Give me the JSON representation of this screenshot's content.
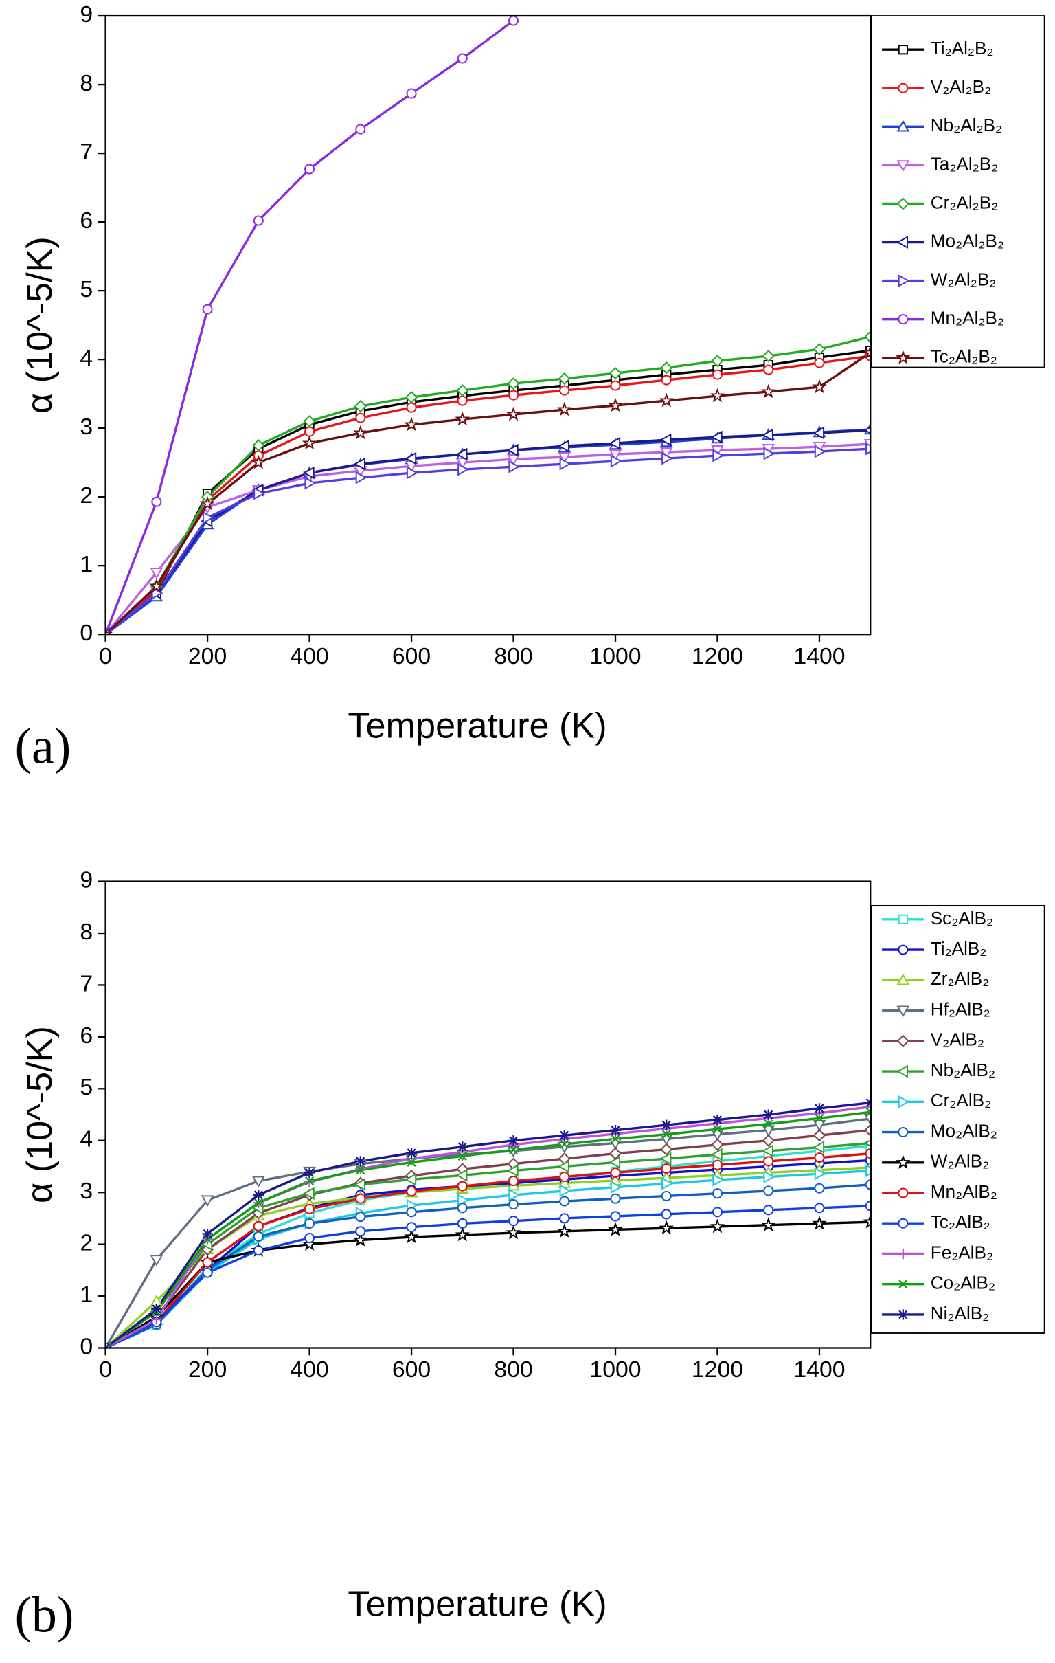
{
  "chart_data": [
    {
      "type": "line",
      "panel_label": "(a)",
      "x_label": "Temperature (K)",
      "y_label": "α (10^-5/K)",
      "x": [
        0,
        100,
        200,
        300,
        400,
        500,
        600,
        700,
        800,
        900,
        1000,
        1100,
        1200,
        1300,
        1400,
        1500
      ],
      "xlim": [
        0,
        1500
      ],
      "xticks": [
        0,
        200,
        400,
        600,
        800,
        1000,
        1200,
        1400
      ],
      "ylim": [
        0,
        9
      ],
      "yticks": [
        0,
        1,
        2,
        3,
        4,
        5,
        6,
        7,
        8,
        9
      ],
      "series": [
        {
          "name": "Ti₂Al₂B₂",
          "color": "#000000",
          "marker": "square",
          "values": [
            0,
            0.6,
            2.05,
            2.7,
            3.05,
            3.25,
            3.38,
            3.47,
            3.55,
            3.62,
            3.7,
            3.78,
            3.85,
            3.92,
            4.03,
            4.13
          ]
        },
        {
          "name": "V₂Al₂B₂",
          "color": "#e8161b",
          "marker": "circle",
          "values": [
            0,
            0.65,
            1.95,
            2.6,
            2.95,
            3.15,
            3.3,
            3.4,
            3.48,
            3.55,
            3.62,
            3.7,
            3.78,
            3.85,
            3.95,
            4.05
          ]
        },
        {
          "name": "Nb₂Al₂B₂",
          "color": "#1c3fd6",
          "marker": "triangle-up",
          "values": [
            0,
            0.55,
            1.6,
            2.1,
            2.35,
            2.47,
            2.55,
            2.62,
            2.68,
            2.72,
            2.76,
            2.8,
            2.85,
            2.9,
            2.94,
            2.98
          ]
        },
        {
          "name": "Ta₂Al₂B₂",
          "color": "#c060e0",
          "marker": "triangle-down",
          "values": [
            0,
            0.9,
            1.85,
            2.1,
            2.3,
            2.38,
            2.45,
            2.5,
            2.55,
            2.58,
            2.62,
            2.65,
            2.68,
            2.7,
            2.73,
            2.77
          ]
        },
        {
          "name": "Cr₂Al₂B₂",
          "color": "#22aa22",
          "marker": "diamond",
          "values": [
            0,
            0.7,
            2.0,
            2.75,
            3.1,
            3.32,
            3.45,
            3.55,
            3.65,
            3.72,
            3.8,
            3.88,
            3.98,
            4.05,
            4.15,
            4.33
          ]
        },
        {
          "name": "Mo₂Al₂B₂",
          "color": "#1a1a8c",
          "marker": "triangle-left",
          "values": [
            0,
            0.6,
            1.65,
            2.1,
            2.35,
            2.48,
            2.56,
            2.62,
            2.68,
            2.74,
            2.78,
            2.83,
            2.87,
            2.9,
            2.93,
            2.97
          ]
        },
        {
          "name": "W₂Al₂B₂",
          "color": "#5040e0",
          "marker": "triangle-right",
          "values": [
            0,
            0.6,
            1.7,
            2.05,
            2.2,
            2.28,
            2.35,
            2.4,
            2.44,
            2.48,
            2.52,
            2.56,
            2.6,
            2.63,
            2.66,
            2.7
          ]
        },
        {
          "name": "Mn₂Al₂B₂",
          "color": "#8a2be2",
          "marker": "circle",
          "values": [
            0,
            1.93,
            4.73,
            6.02,
            6.77,
            7.35,
            7.87,
            8.38,
            8.93,
            null,
            null,
            null,
            null,
            null,
            null,
            null
          ]
        },
        {
          "name": "Tc₂Al₂B₂",
          "color": "#6b1010",
          "marker": "star",
          "values": [
            0,
            0.7,
            1.9,
            2.5,
            2.78,
            2.93,
            3.05,
            3.13,
            3.2,
            3.27,
            3.33,
            3.4,
            3.47,
            3.53,
            3.6,
            4.1
          ]
        }
      ]
    },
    {
      "type": "line",
      "panel_label": "(b)",
      "x_label": "Temperature (K)",
      "y_label": "α (10^-5/K)",
      "x": [
        0,
        100,
        200,
        300,
        400,
        500,
        600,
        700,
        800,
        900,
        1000,
        1100,
        1200,
        1300,
        1400,
        1500
      ],
      "xlim": [
        0,
        1500
      ],
      "xticks": [
        0,
        200,
        400,
        600,
        800,
        1000,
        1200,
        1400
      ],
      "ylim": [
        0,
        9
      ],
      "yticks": [
        0,
        1,
        2,
        3,
        4,
        5,
        6,
        7,
        8,
        9
      ],
      "series": [
        {
          "name": "Sc₂AlB₂",
          "color": "#2ee0d0",
          "marker": "square",
          "values": [
            0,
            0.45,
            1.55,
            2.2,
            2.6,
            2.85,
            3.0,
            3.1,
            3.2,
            3.3,
            3.4,
            3.5,
            3.6,
            3.7,
            3.8,
            3.9
          ]
        },
        {
          "name": "Ti₂AlB₂",
          "color": "#1010d0",
          "marker": "circle",
          "values": [
            0,
            0.5,
            1.5,
            2.35,
            2.7,
            2.95,
            3.05,
            3.12,
            3.18,
            3.25,
            3.32,
            3.38,
            3.44,
            3.5,
            3.56,
            3.62
          ]
        },
        {
          "name": "Zr₂AlB₂",
          "color": "#90d020",
          "marker": "triangle-up",
          "values": [
            0,
            0.9,
            1.9,
            2.55,
            2.78,
            2.9,
            3.0,
            3.07,
            3.13,
            3.18,
            3.23,
            3.28,
            3.33,
            3.38,
            3.43,
            3.48
          ]
        },
        {
          "name": "Hf₂AlB₂",
          "color": "#607080",
          "marker": "triangle-down",
          "values": [
            0,
            1.7,
            2.85,
            3.22,
            3.4,
            3.55,
            3.65,
            3.73,
            3.8,
            3.88,
            3.95,
            4.03,
            4.12,
            4.2,
            4.3,
            4.42
          ]
        },
        {
          "name": "V₂AlB₂",
          "color": "#804050",
          "marker": "diamond",
          "values": [
            0,
            0.6,
            1.9,
            2.6,
            2.95,
            3.18,
            3.32,
            3.45,
            3.55,
            3.65,
            3.75,
            3.83,
            3.92,
            4.0,
            4.1,
            4.2
          ]
        },
        {
          "name": "Nb₂AlB₂",
          "color": "#30a030",
          "marker": "triangle-left",
          "values": [
            0,
            0.7,
            2.0,
            2.7,
            2.98,
            3.15,
            3.25,
            3.33,
            3.42,
            3.5,
            3.58,
            3.65,
            3.73,
            3.8,
            3.87,
            3.95
          ]
        },
        {
          "name": "Cr₂AlB₂",
          "color": "#20c8e8",
          "marker": "triangle-right",
          "values": [
            0,
            0.45,
            1.45,
            2.1,
            2.4,
            2.6,
            2.75,
            2.85,
            2.95,
            3.03,
            3.1,
            3.17,
            3.24,
            3.3,
            3.36,
            3.42
          ]
        },
        {
          "name": "Mo₂AlB₂",
          "color": "#1060c0",
          "marker": "circle",
          "values": [
            0,
            0.45,
            1.5,
            2.15,
            2.4,
            2.53,
            2.62,
            2.7,
            2.77,
            2.83,
            2.88,
            2.93,
            2.98,
            3.03,
            3.08,
            3.15
          ]
        },
        {
          "name": "W₂AlB₂",
          "color": "#000000",
          "marker": "star",
          "values": [
            0,
            0.6,
            1.65,
            1.88,
            2.0,
            2.08,
            2.14,
            2.18,
            2.22,
            2.25,
            2.28,
            2.31,
            2.34,
            2.37,
            2.4,
            2.43
          ]
        },
        {
          "name": "Mn₂AlB₂",
          "color": "#e01010",
          "marker": "circle",
          "values": [
            0,
            0.5,
            1.65,
            2.35,
            2.68,
            2.88,
            3.02,
            3.12,
            3.22,
            3.3,
            3.38,
            3.46,
            3.53,
            3.6,
            3.67,
            3.75
          ]
        },
        {
          "name": "Tc₂AlB₂",
          "color": "#1040e0",
          "marker": "circle",
          "values": [
            0,
            0.5,
            1.45,
            1.88,
            2.12,
            2.25,
            2.33,
            2.4,
            2.45,
            2.5,
            2.54,
            2.58,
            2.62,
            2.66,
            2.7,
            2.74
          ]
        },
        {
          "name": "Fe₂AlB₂",
          "color": "#c050e0",
          "marker": "plus",
          "values": [
            0,
            0.55,
            2.1,
            2.8,
            3.2,
            3.45,
            3.65,
            3.78,
            3.92,
            4.03,
            4.13,
            4.23,
            4.33,
            4.43,
            4.53,
            4.65
          ]
        },
        {
          "name": "Co₂AlB₂",
          "color": "#10a010",
          "marker": "cross",
          "values": [
            0,
            0.7,
            2.1,
            2.8,
            3.22,
            3.43,
            3.58,
            3.7,
            3.82,
            3.93,
            4.03,
            4.12,
            4.22,
            4.32,
            4.43,
            4.55
          ]
        },
        {
          "name": "Ni₂AlB₂",
          "color": "#1a1a8c",
          "marker": "asterisk",
          "values": [
            0,
            0.75,
            2.2,
            2.95,
            3.38,
            3.6,
            3.76,
            3.88,
            4.0,
            4.1,
            4.2,
            4.3,
            4.4,
            4.5,
            4.62,
            4.73
          ]
        }
      ]
    }
  ]
}
